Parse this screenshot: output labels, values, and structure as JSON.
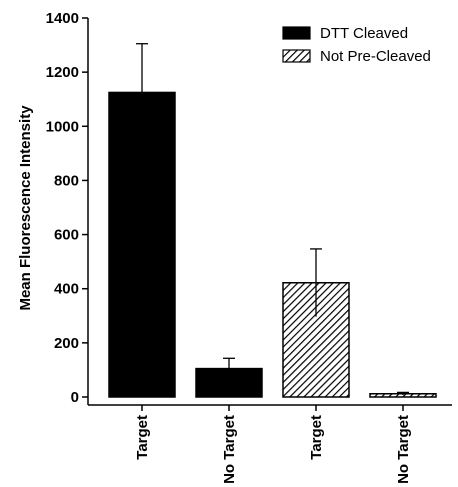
{
  "chart_data": {
    "type": "bar",
    "title": "",
    "xlabel": "",
    "ylabel": "Mean Fluorescence Intensity",
    "ylim": [
      0,
      1400
    ],
    "yticks": [
      0,
      200,
      400,
      600,
      800,
      1000,
      1200,
      1400
    ],
    "grid": false,
    "legend_position": "top-right",
    "categories": [
      "Target",
      "No Target",
      "Target",
      "No Target"
    ],
    "bars": [
      {
        "category": "Target",
        "series": "DTT Cleaved",
        "value": 1125,
        "error": 180
      },
      {
        "category": "No Target",
        "series": "DTT Cleaved",
        "value": 105,
        "error": 38
      },
      {
        "category": "Target",
        "series": "Not Pre-Cleaved",
        "value": 422,
        "error": 125
      },
      {
        "category": "No Target",
        "series": "Not Pre-Cleaved",
        "value": 12,
        "error": 5
      }
    ],
    "series": [
      {
        "name": "DTT Cleaved",
        "fill": "solid",
        "color": "#000000"
      },
      {
        "name": "Not Pre-Cleaved",
        "fill": "hatched",
        "color": "#000000"
      }
    ]
  }
}
